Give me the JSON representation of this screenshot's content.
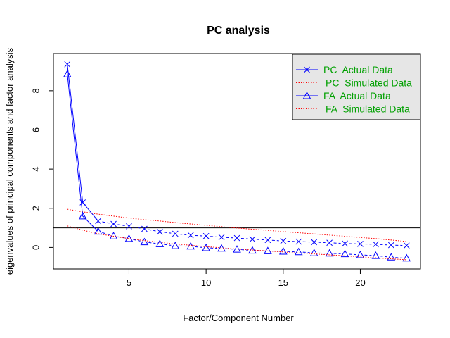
{
  "chart_data": {
    "type": "line",
    "title": "PC analysis",
    "xlabel": "Factor/Component Number",
    "ylabel": "eigenvalues of principal components and factor analysis",
    "xlim": [
      0.1,
      23.9
    ],
    "ylim": [
      -1.1,
      9.9
    ],
    "xticks": [
      5,
      10,
      15,
      20
    ],
    "yticks": [
      0,
      2,
      4,
      6,
      8
    ],
    "hline": 1,
    "grid": false,
    "legend_position": "top-right",
    "x": [
      1,
      2,
      3,
      4,
      5,
      6,
      7,
      8,
      9,
      10,
      11,
      12,
      13,
      14,
      15,
      16,
      17,
      18,
      19,
      20,
      21,
      22,
      23
    ],
    "series": [
      {
        "name": "PC  Actual Data",
        "color": "#0000ff",
        "line": "solid-then-dashed",
        "marker": "x",
        "values": [
          9.35,
          2.3,
          1.35,
          1.2,
          1.08,
          0.95,
          0.8,
          0.7,
          0.62,
          0.58,
          0.52,
          0.48,
          0.42,
          0.38,
          0.33,
          0.3,
          0.27,
          0.24,
          0.2,
          0.18,
          0.16,
          0.12,
          0.1
        ]
      },
      {
        "name": "PC  Simulated Data",
        "color": "#ff0000",
        "line": "dotted",
        "marker": "none",
        "values": [
          1.95,
          1.82,
          1.7,
          1.6,
          1.5,
          1.42,
          1.35,
          1.27,
          1.2,
          1.13,
          1.06,
          0.99,
          0.93,
          0.87,
          0.81,
          0.75,
          0.69,
          0.63,
          0.57,
          0.51,
          0.45,
          0.38,
          0.3
        ]
      },
      {
        "name": "FA  Actual Data",
        "color": "#0000ff",
        "line": "solid-then-dashed",
        "marker": "triangle",
        "values": [
          8.85,
          1.6,
          0.82,
          0.58,
          0.45,
          0.28,
          0.18,
          0.08,
          0.06,
          -0.02,
          -0.05,
          -0.1,
          -0.15,
          -0.18,
          -0.2,
          -0.23,
          -0.28,
          -0.3,
          -0.33,
          -0.38,
          -0.42,
          -0.5,
          -0.55
        ]
      },
      {
        "name": "FA  Simulated Data",
        "color": "#ff0000",
        "line": "dotted",
        "marker": "none",
        "values": [
          1.1,
          0.88,
          0.7,
          0.57,
          0.45,
          0.35,
          0.26,
          0.18,
          0.11,
          0.04,
          -0.02,
          -0.08,
          -0.13,
          -0.18,
          -0.23,
          -0.28,
          -0.33,
          -0.38,
          -0.43,
          -0.48,
          -0.53,
          -0.58,
          -0.63
        ]
      }
    ],
    "legend": {
      "background": "#e6e6e6",
      "text_color": "#00a000"
    }
  }
}
